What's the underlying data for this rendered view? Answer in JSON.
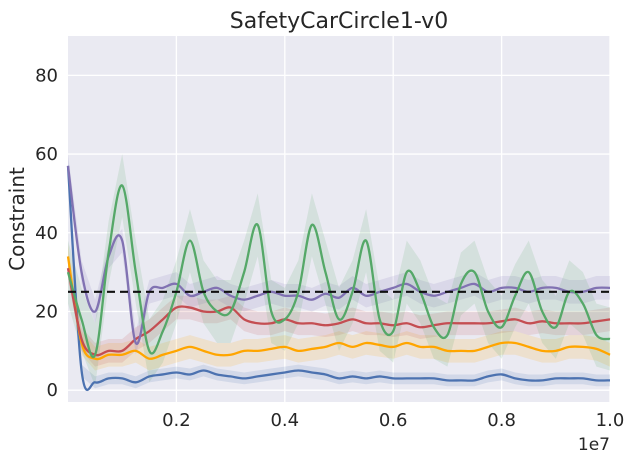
{
  "chart_data": {
    "type": "line",
    "title": "SafetyCarCircle1-v0",
    "xlabel": "",
    "ylabel": "Constraint",
    "x_offset_label": "1e7",
    "xlim": [
      0.0,
      1.0
    ],
    "ylim": [
      -3,
      90
    ],
    "x_ticks": [
      0.2,
      0.4,
      0.6,
      0.8,
      1.0
    ],
    "x_tick_labels": [
      "0.2",
      "0.4",
      "0.6",
      "0.8",
      "1.0"
    ],
    "y_ticks": [
      0,
      20,
      40,
      60,
      80
    ],
    "y_tick_labels": [
      "0",
      "20",
      "40",
      "60",
      "80"
    ],
    "grid": true,
    "background": "#eaeaf2",
    "threshold": {
      "value": 25,
      "style": "dashed",
      "color": "#111111"
    },
    "x": [
      0.0,
      0.025,
      0.05,
      0.075,
      0.1,
      0.125,
      0.15,
      0.175,
      0.2,
      0.225,
      0.25,
      0.275,
      0.3,
      0.325,
      0.35,
      0.375,
      0.4,
      0.425,
      0.45,
      0.475,
      0.5,
      0.525,
      0.55,
      0.575,
      0.6,
      0.625,
      0.65,
      0.675,
      0.7,
      0.725,
      0.75,
      0.775,
      0.8,
      0.825,
      0.85,
      0.875,
      0.9,
      0.925,
      0.95,
      0.975,
      1.0
    ],
    "series": [
      {
        "name": "blue",
        "color": "#4c72b0",
        "band_width": 1.5,
        "values": [
          57,
          5,
          2,
          3,
          3,
          2,
          3.5,
          4,
          4.5,
          4,
          5,
          4,
          3.5,
          3,
          3.5,
          4,
          4.5,
          5,
          4.5,
          4,
          3,
          3.5,
          3,
          3.5,
          3,
          3,
          3,
          3,
          2.5,
          2.5,
          2.5,
          3.5,
          4,
          3,
          2.5,
          2.5,
          3,
          3,
          3,
          2.5,
          2.5
        ]
      },
      {
        "name": "orange",
        "color": "#ffa500",
        "band_width": 3,
        "values": [
          34,
          12,
          8,
          9,
          9,
          10,
          8,
          9,
          10,
          11,
          10,
          9,
          9,
          10,
          10,
          10.5,
          11,
          10,
          10.5,
          11,
          12,
          11,
          12,
          11.5,
          11,
          12,
          11,
          11,
          10,
          10,
          10,
          11,
          12,
          12,
          11,
          10,
          10,
          11,
          11,
          10.5,
          9
        ]
      },
      {
        "name": "red",
        "color": "#c44e52",
        "band_width": 3,
        "values": [
          31,
          13,
          9,
          10,
          10,
          13,
          15,
          18,
          21,
          21,
          20,
          20,
          21,
          18,
          17,
          17,
          18,
          17,
          17,
          16.5,
          17,
          18,
          17,
          17,
          16.5,
          17,
          16,
          16.5,
          17,
          17,
          17,
          17,
          17.5,
          18,
          17,
          17.5,
          17,
          17,
          17,
          17.5,
          18
        ]
      },
      {
        "name": "purple",
        "color": "#8172b2",
        "band_width": 3,
        "values": [
          57,
          30,
          20,
          34,
          38,
          12,
          25,
          26,
          27,
          24,
          25,
          26,
          24,
          23,
          24,
          25,
          24,
          24,
          23,
          24.5,
          23.5,
          26,
          24,
          25,
          26,
          27,
          25,
          24,
          25,
          26,
          27,
          25,
          26,
          26,
          25,
          26,
          26,
          25,
          25,
          26,
          26
        ]
      },
      {
        "name": "green",
        "color": "#55a868",
        "band_width": 8,
        "values": [
          30,
          18,
          9,
          35,
          52,
          30,
          10,
          15,
          25,
          38,
          25,
          20,
          20,
          30,
          42,
          20,
          18,
          25,
          42,
          30,
          18,
          25,
          38,
          18,
          15,
          30,
          25,
          16,
          14,
          27,
          30,
          20,
          16,
          24,
          30,
          20,
          16,
          25,
          22,
          14,
          13
        ]
      }
    ]
  }
}
